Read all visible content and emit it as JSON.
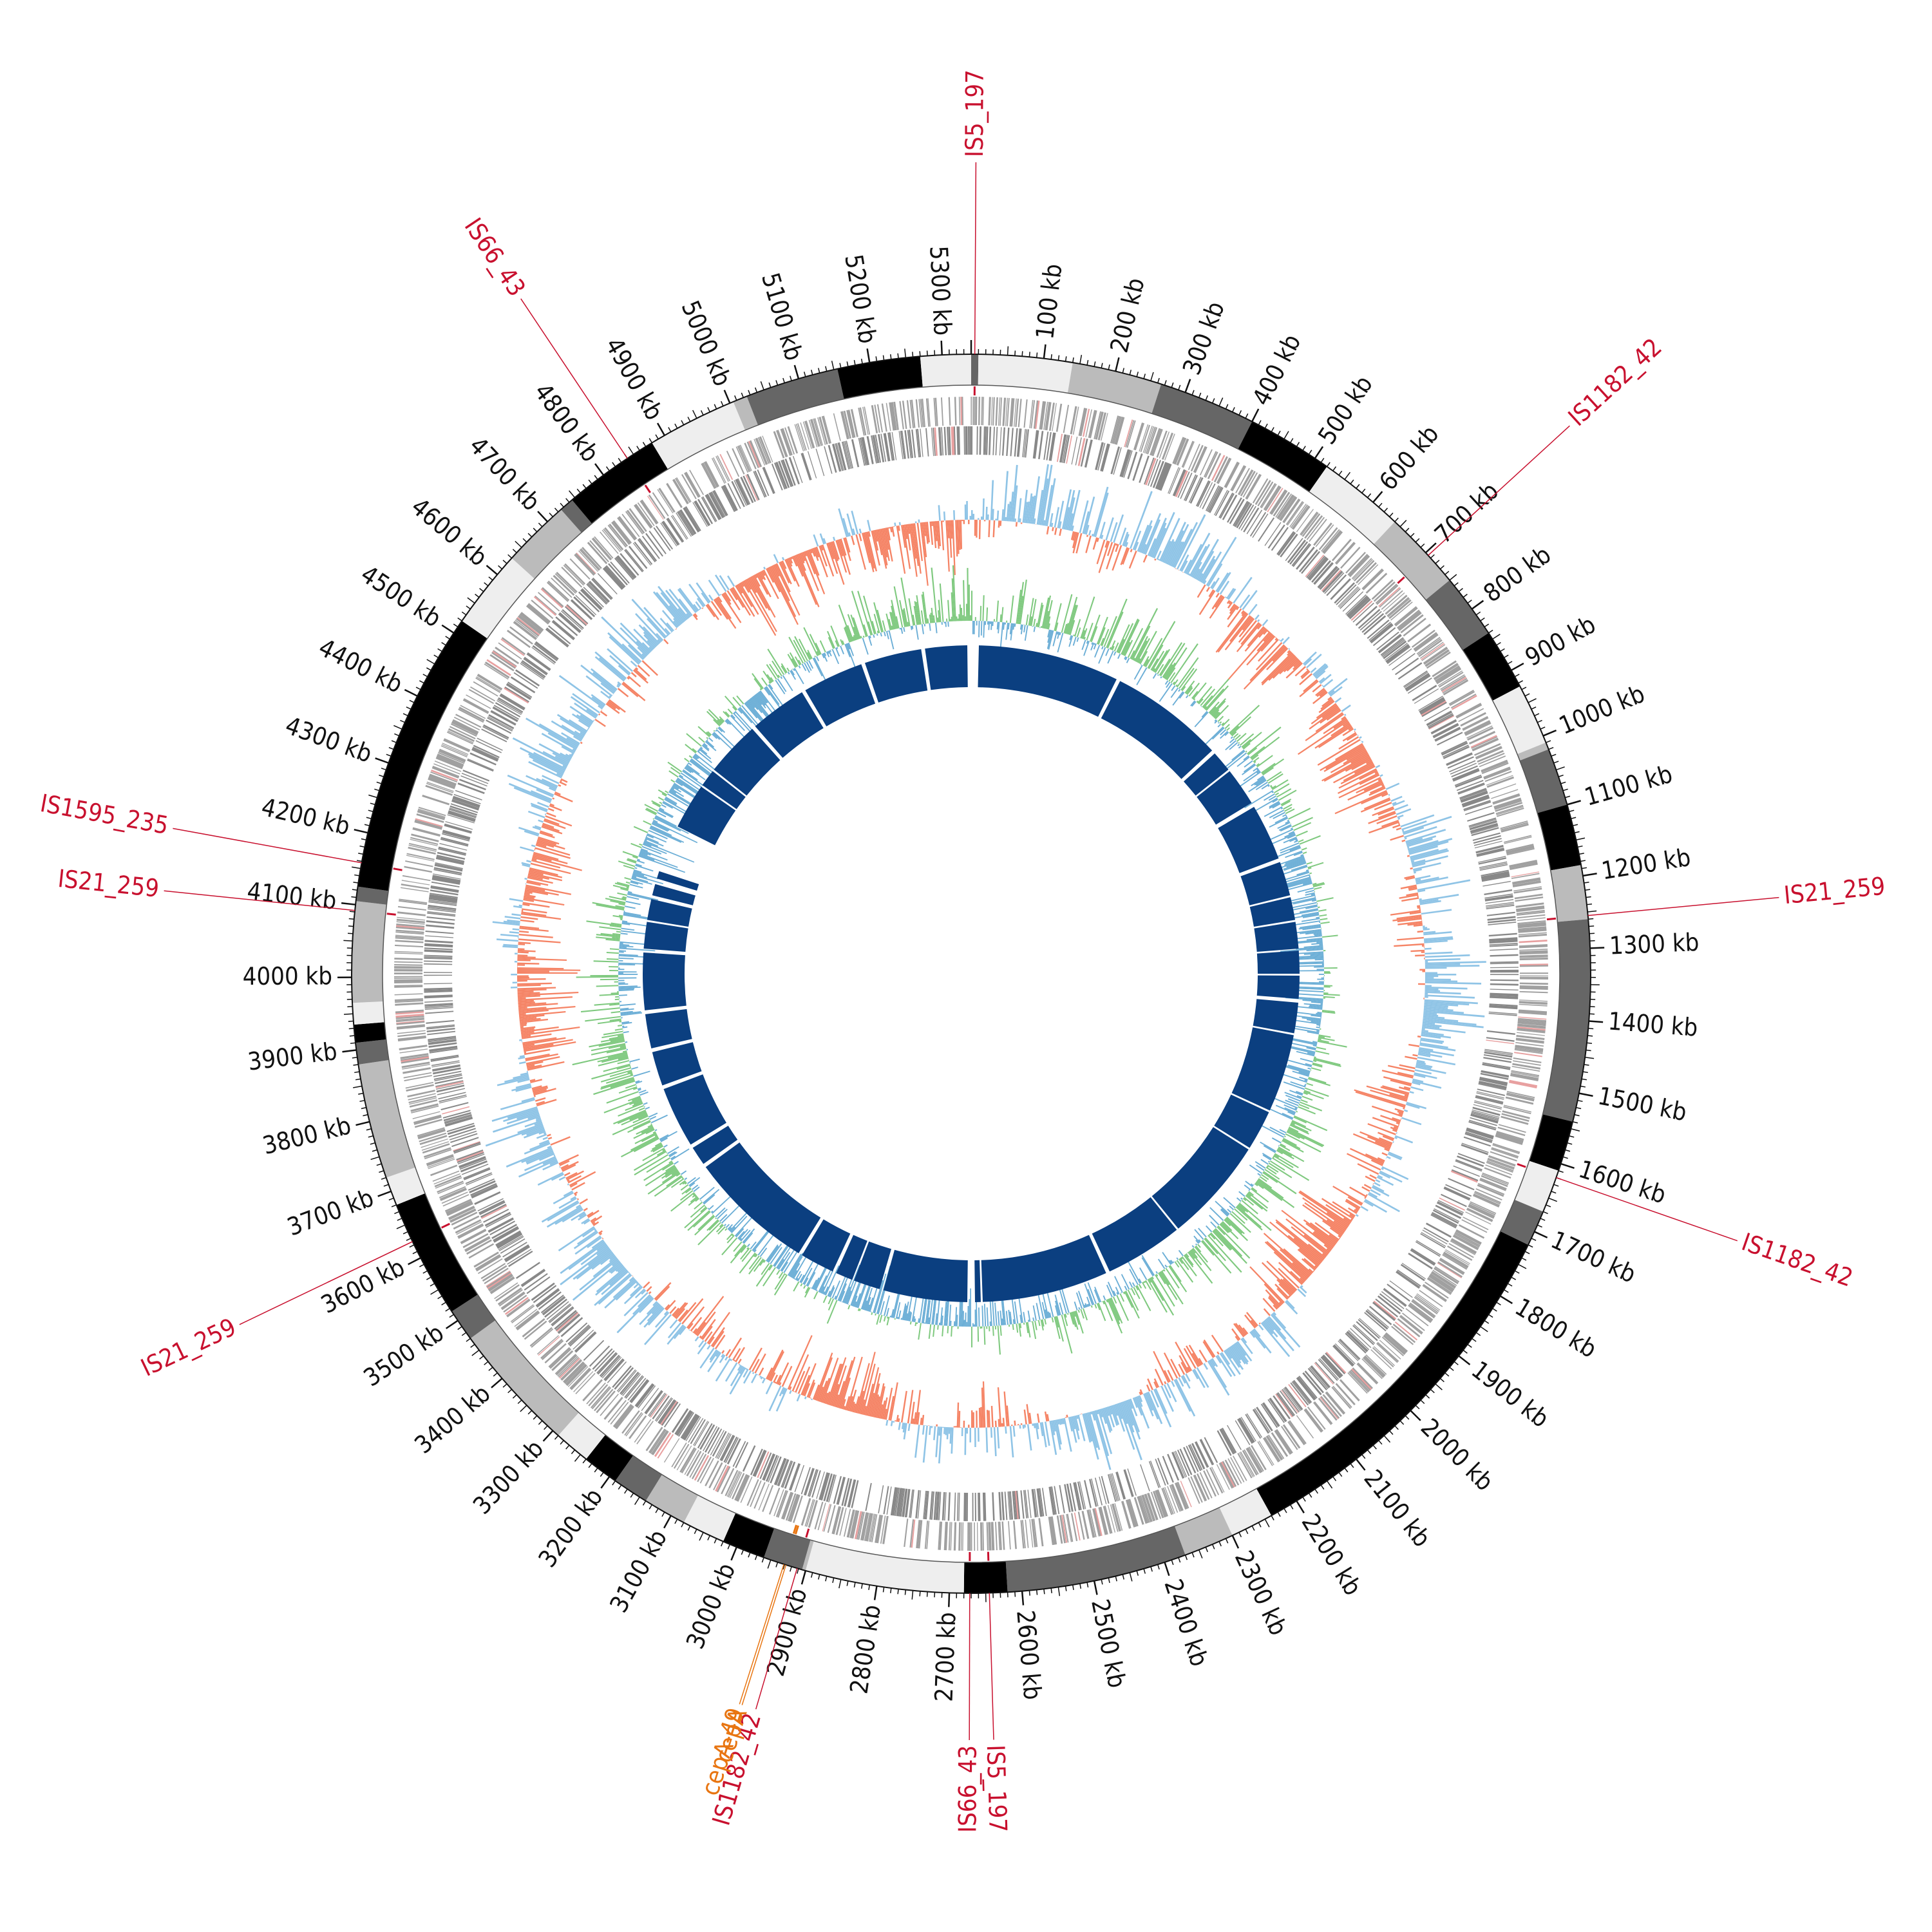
{
  "genome": {
    "length_kb": 5340
  },
  "scale": {
    "tick_labels": [
      "100 kb",
      "200 kb",
      "300 kb",
      "400 kb",
      "500 kb",
      "600 kb",
      "700 kb",
      "800 kb",
      "900 kb",
      "1000 kb",
      "1100 kb",
      "1200 kb",
      "1300 kb",
      "1400 kb",
      "1500 kb",
      "1600 kb",
      "1700 kb",
      "1800 kb",
      "1900 kb",
      "2000 kb",
      "2100 kb",
      "2200 kb",
      "2300 kb",
      "2400 kb",
      "2500 kb",
      "2600 kb",
      "2700 kb",
      "2800 kb",
      "2900 kb",
      "3000 kb",
      "3100 kb",
      "3200 kb",
      "3300 kb",
      "3400 kb",
      "3500 kb",
      "3600 kb",
      "3700 kb",
      "3800 kb",
      "3900 kb",
      "4000 kb",
      "4100 kb",
      "4200 kb",
      "4300 kb",
      "4400 kb",
      "4500 kb",
      "4600 kb",
      "4700 kb",
      "4800 kb",
      "4900 kb",
      "5000 kb",
      "5100 kb",
      "5200 kb",
      "5300 kb"
    ]
  },
  "karyotype_bands": [
    {
      "start": 0,
      "end": 10,
      "shade": "dark"
    },
    {
      "start": 10,
      "end": 140,
      "shade": "white"
    },
    {
      "start": 140,
      "end": 265,
      "shade": "light"
    },
    {
      "start": 265,
      "end": 400,
      "shade": "dark"
    },
    {
      "start": 400,
      "end": 520,
      "shade": "black"
    },
    {
      "start": 520,
      "end": 640,
      "shade": "white"
    },
    {
      "start": 640,
      "end": 750,
      "shade": "light"
    },
    {
      "start": 750,
      "end": 840,
      "shade": "dark"
    },
    {
      "start": 840,
      "end": 925,
      "shade": "black"
    },
    {
      "start": 925,
      "end": 1010,
      "shade": "white"
    },
    {
      "start": 1010,
      "end": 1020,
      "shade": "light"
    },
    {
      "start": 1020,
      "end": 1100,
      "shade": "dark"
    },
    {
      "start": 1100,
      "end": 1185,
      "shade": "black"
    },
    {
      "start": 1185,
      "end": 1260,
      "shade": "light"
    },
    {
      "start": 1260,
      "end": 1540,
      "shade": "dark"
    },
    {
      "start": 1540,
      "end": 1610,
      "shade": "black"
    },
    {
      "start": 1610,
      "end": 1670,
      "shade": "white"
    },
    {
      "start": 1670,
      "end": 1720,
      "shade": "dark"
    },
    {
      "start": 1720,
      "end": 2240,
      "shade": "black"
    },
    {
      "start": 2240,
      "end": 2300,
      "shade": "white"
    },
    {
      "start": 2300,
      "end": 2370,
      "shade": "light"
    },
    {
      "start": 2370,
      "end": 2620,
      "shade": "dark"
    },
    {
      "start": 2620,
      "end": 2680,
      "shade": "black"
    },
    {
      "start": 2680,
      "end": 2900,
      "shade": "white"
    },
    {
      "start": 2900,
      "end": 2905,
      "shade": "light"
    },
    {
      "start": 2905,
      "end": 2960,
      "shade": "dark"
    },
    {
      "start": 2960,
      "end": 3020,
      "shade": "black"
    },
    {
      "start": 3020,
      "end": 3080,
      "shade": "white"
    },
    {
      "start": 3080,
      "end": 3140,
      "shade": "light"
    },
    {
      "start": 3140,
      "end": 3190,
      "shade": "dark"
    },
    {
      "start": 3190,
      "end": 3240,
      "shade": "black"
    },
    {
      "start": 3240,
      "end": 3290,
      "shade": "white"
    },
    {
      "start": 3290,
      "end": 3470,
      "shade": "light"
    },
    {
      "start": 3470,
      "end": 3515,
      "shade": "dark"
    },
    {
      "start": 3515,
      "end": 3680,
      "shade": "black"
    },
    {
      "start": 3680,
      "end": 3720,
      "shade": "white"
    },
    {
      "start": 3720,
      "end": 3880,
      "shade": "light"
    },
    {
      "start": 3880,
      "end": 3910,
      "shade": "dark"
    },
    {
      "start": 3910,
      "end": 3935,
      "shade": "black"
    },
    {
      "start": 3935,
      "end": 3965,
      "shade": "white"
    },
    {
      "start": 3965,
      "end": 4105,
      "shade": "light"
    },
    {
      "start": 4105,
      "end": 4125,
      "shade": "dark"
    },
    {
      "start": 4125,
      "end": 4520,
      "shade": "black"
    },
    {
      "start": 4520,
      "end": 4630,
      "shade": "white"
    },
    {
      "start": 4630,
      "end": 4725,
      "shade": "light"
    },
    {
      "start": 4725,
      "end": 4745,
      "shade": "dark"
    },
    {
      "start": 4745,
      "end": 4880,
      "shade": "black"
    },
    {
      "start": 4880,
      "end": 5005,
      "shade": "white"
    },
    {
      "start": 5005,
      "end": 5025,
      "shade": "light"
    },
    {
      "start": 5025,
      "end": 5155,
      "shade": "dark"
    },
    {
      "start": 5155,
      "end": 5270,
      "shade": "black"
    },
    {
      "start": 5270,
      "end": 5340,
      "shade": "white"
    }
  ],
  "features": [
    {
      "label": "IS5_197",
      "kb": 5,
      "type": "IS",
      "side": "outer"
    },
    {
      "label": "IS1182_42",
      "kb": 705,
      "type": "IS",
      "side": "outer"
    },
    {
      "label": "IS21_259",
      "kb": 1255,
      "type": "IS",
      "side": "outer"
    },
    {
      "label": "IS1182_42",
      "kb": 1620,
      "type": "IS",
      "side": "outer"
    },
    {
      "label": "IS5_197",
      "kb": 2645,
      "type": "IS",
      "side": "bottom"
    },
    {
      "label": "IS66_43",
      "kb": 2672,
      "type": "IS",
      "side": "bottom"
    },
    {
      "label": "IS1182_42",
      "kb": 2912,
      "type": "IS",
      "side": "bottom"
    },
    {
      "label": "cepA",
      "kb": 2928,
      "type": "AMR",
      "side": "bottom"
    },
    {
      "label": "cepA-49",
      "kb": 2931,
      "type": "AMR",
      "side": "bottom"
    },
    {
      "label": "IS21_259",
      "kb": 3625,
      "type": "IS",
      "side": "outer"
    },
    {
      "label": "IS21_259",
      "kb": 4092,
      "type": "IS",
      "side": "outer"
    },
    {
      "label": "IS1595_235",
      "kb": 4158,
      "type": "IS",
      "side": "outer"
    },
    {
      "label": "IS66_43",
      "kb": 4840,
      "type": "IS",
      "side": "outer"
    }
  ],
  "inner_blocks": [
    [
      20,
      390
    ],
    [
      400,
      700
    ],
    [
      710,
      765
    ],
    [
      770,
      870
    ],
    [
      882,
      1030
    ],
    [
      1040,
      1130
    ],
    [
      1135,
      1195
    ],
    [
      1200,
      1270
    ],
    [
      1275,
      1335
    ],
    [
      1340,
      1400
    ],
    [
      1410,
      1490
    ],
    [
      1495,
      1700
    ],
    [
      1705,
      1810
    ],
    [
      1815,
      2090
    ],
    [
      2095,
      2300
    ],
    [
      2310,
      2640
    ],
    [
      2645,
      2660
    ],
    [
      2680,
      2900
    ],
    [
      2910,
      2980
    ],
    [
      2985,
      3030
    ],
    [
      3040,
      3130
    ],
    [
      3140,
      3470
    ],
    [
      3480,
      3530
    ],
    [
      3540,
      3700
    ],
    [
      3710,
      3800
    ],
    [
      3810,
      3900
    ],
    [
      3910,
      4060
    ],
    [
      4070,
      4140
    ],
    [
      4145,
      4200
    ],
    [
      4210,
      4240
    ],
    [
      4255,
      4275
    ],
    [
      4400,
      4520
    ],
    [
      4525,
      4570
    ],
    [
      4575,
      4720
    ],
    [
      4730,
      4880
    ],
    [
      4890,
      5050
    ],
    [
      5060,
      5210
    ],
    [
      5220,
      5330
    ]
  ],
  "colors": {
    "band_white": "#eeeeee",
    "band_light": "#bbbbbb",
    "band_dark": "#666666",
    "band_black": "#000000",
    "gene_fwd": "#a0a0a0",
    "gene_rev": "#888888",
    "gene_accent": "#e8a0a0",
    "gc_positive": "#8fc4e6",
    "gc_negative": "#f58466",
    "gcskew_positive": "#7fc97f",
    "gcskew_negative": "#6baed6",
    "inner_block": "#0b3f80",
    "is_element": "#c8102e",
    "amr_gene": "#e87511",
    "axis": "#111111"
  }
}
